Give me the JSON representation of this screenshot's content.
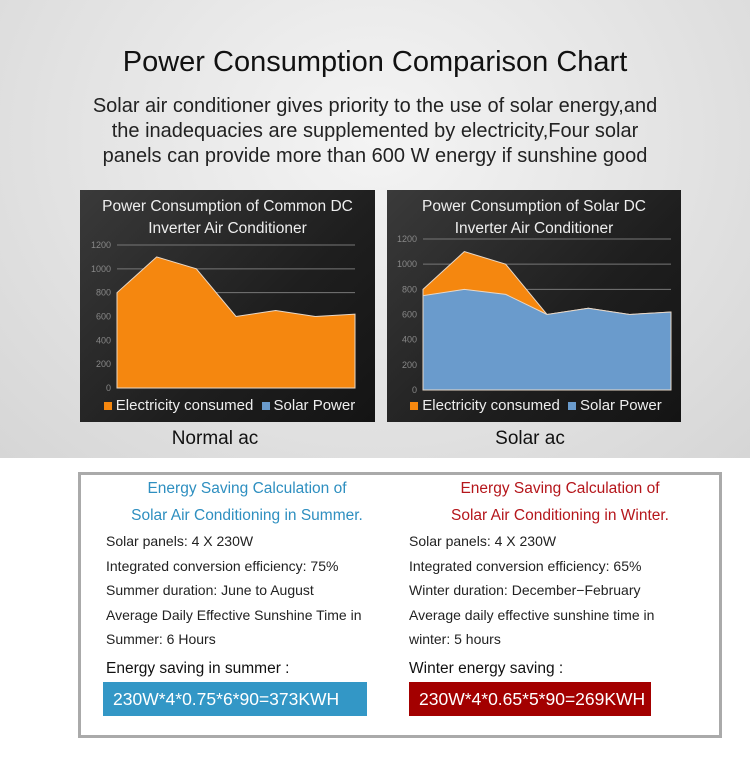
{
  "header": {
    "title": "Power Consumption Comparison Chart",
    "subtitle": [
      "Solar air conditioner gives priority to the use of solar energy,and",
      "the inadequacies are supplemented by electricity,Four solar",
      "panels can provide more than 600 W energy if sunshine good"
    ]
  },
  "chart_data": [
    {
      "type": "area",
      "title": [
        "Power Consumption of Common DC",
        "Inverter Air Conditioner"
      ],
      "caption": "Normal ac",
      "x": [
        1,
        2,
        3,
        4,
        5,
        6,
        7
      ],
      "ylim": [
        0,
        1200
      ],
      "yticks": [
        "0",
        "200",
        "400",
        "600",
        "800",
        "1000",
        "1200"
      ],
      "series": [
        {
          "name": "Electricity consumed",
          "color": "#f5870f",
          "values": [
            800,
            1100,
            1000,
            600,
            650,
            600,
            620
          ]
        },
        {
          "name": "Solar Power",
          "color": "#6a9bcc",
          "values": [
            0,
            0,
            0,
            0,
            0,
            0,
            0
          ]
        }
      ],
      "legend": "bottom"
    },
    {
      "type": "area",
      "title": [
        "Power Consumption of Solar DC",
        "Inverter Air Conditioner"
      ],
      "caption": "Solar ac",
      "x": [
        1,
        2,
        3,
        4,
        5,
        6,
        7
      ],
      "ylim": [
        0,
        1200
      ],
      "yticks": [
        "0",
        "200",
        "400",
        "600",
        "800",
        "1000",
        "1200"
      ],
      "series": [
        {
          "name": "Electricity consumed",
          "color": "#f5870f",
          "values": [
            800,
            1100,
            1000,
            600,
            650,
            600,
            620
          ]
        },
        {
          "name": "Solar Power",
          "color": "#6a9bcc",
          "values": [
            750,
            800,
            760,
            600,
            650,
            600,
            620
          ]
        }
      ],
      "legend": "bottom"
    }
  ],
  "summer": {
    "heading": [
      "Energy Saving Calculation of",
      "Solar Air Conditioning in Summer."
    ],
    "color": "#2e8fc0",
    "lines": [
      "Solar panels: 4 X 230W",
      "Integrated conversion efficiency: 75%",
      "Summer duration: June to August",
      "Average Daily Effective Sunshine Time in",
      "Summer: 6 Hours"
    ],
    "saving_label": "Energy saving in summer :",
    "formula": "230W*4*0.75*6*90=373KWH",
    "box_color": "#3397c6"
  },
  "winter": {
    "heading": [
      "Energy Saving Calculation of",
      "Solar Air Conditioning in Winter."
    ],
    "color": "#b5161b",
    "lines": [
      "Solar panels: 4 X 230W",
      "Integrated conversion efficiency: 65%",
      "Winter duration: December−February",
      "Average daily effective sunshine time in",
      "winter: 5 hours"
    ],
    "saving_label": "Winter energy saving :",
    "formula": "230W*4*0.65*5*90=269KWH",
    "box_color": "#a30000"
  }
}
